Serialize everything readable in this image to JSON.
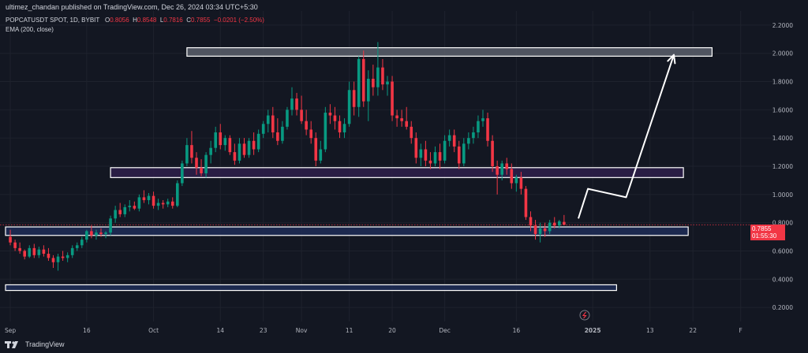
{
  "header": {
    "publisher_text": "ultimez_chandan published on TradingView.com, Dec 26, 2024 03:34 UTC+5:30"
  },
  "legend": {
    "symbol": "POPCATUSDT SPOT, 1D, BYBIT",
    "open_label": "O",
    "open": "0.8056",
    "high_label": "H",
    "high": "0.8548",
    "low_label": "L",
    "low": "0.7816",
    "close_label": "C",
    "close": "0.7855",
    "change": "−0.0201 (−2.50%)",
    "indicator": "EMA (200, close)"
  },
  "price_tag": {
    "price": "0.7855",
    "countdown": "01:55:30"
  },
  "footer": {
    "brand": "TradingView"
  },
  "colors": {
    "background": "#131722",
    "up": "#089981",
    "down": "#f23645",
    "zone_fill": "#1e2d57",
    "zone_border": "#ffffff",
    "mid_zone_fill": "#2e1f4a",
    "top_zone_fill": "#5a5f6b",
    "projection": "#ffffff"
  },
  "chart_data": {
    "type": "candlestick",
    "y_axis": {
      "ticks": [
        "2.2000",
        "2.0000",
        "1.8000",
        "1.6000",
        "1.4000",
        "1.2000",
        "1.0000",
        "0.8000",
        "0.6000",
        "0.4000",
        "0.2000"
      ],
      "tick_values": [
        2.2,
        2.0,
        1.8,
        1.6,
        1.4,
        1.2,
        1.0,
        0.8,
        0.6,
        0.4,
        0.2
      ],
      "range": [
        0.1,
        2.3
      ],
      "position": "right"
    },
    "x_axis": {
      "ticks": [
        "Sep",
        "16",
        "Oct",
        "14",
        "23",
        "Nov",
        "11",
        "20",
        "Dec",
        "16",
        "2025",
        "13",
        "22",
        "F"
      ],
      "tick_days": [
        0,
        16,
        30,
        44,
        53,
        61,
        71,
        80,
        91,
        106,
        122,
        134,
        143,
        153
      ],
      "day_range": [
        -1,
        159
      ]
    },
    "candles": [
      {
        "o": 0.7,
        "h": 0.75,
        "l": 0.64,
        "c": 0.66
      },
      {
        "o": 0.66,
        "h": 0.68,
        "l": 0.6,
        "c": 0.62
      },
      {
        "o": 0.62,
        "h": 0.66,
        "l": 0.58,
        "c": 0.6
      },
      {
        "o": 0.6,
        "h": 0.61,
        "l": 0.54,
        "c": 0.56
      },
      {
        "o": 0.56,
        "h": 0.64,
        "l": 0.55,
        "c": 0.62
      },
      {
        "o": 0.62,
        "h": 0.65,
        "l": 0.55,
        "c": 0.57
      },
      {
        "o": 0.57,
        "h": 0.63,
        "l": 0.55,
        "c": 0.61
      },
      {
        "o": 0.61,
        "h": 0.64,
        "l": 0.56,
        "c": 0.58
      },
      {
        "o": 0.58,
        "h": 0.62,
        "l": 0.53,
        "c": 0.55
      },
      {
        "o": 0.55,
        "h": 0.57,
        "l": 0.48,
        "c": 0.52
      },
      {
        "o": 0.52,
        "h": 0.58,
        "l": 0.46,
        "c": 0.56
      },
      {
        "o": 0.56,
        "h": 0.6,
        "l": 0.53,
        "c": 0.55
      },
      {
        "o": 0.55,
        "h": 0.59,
        "l": 0.52,
        "c": 0.57
      },
      {
        "o": 0.57,
        "h": 0.64,
        "l": 0.55,
        "c": 0.62
      },
      {
        "o": 0.62,
        "h": 0.66,
        "l": 0.6,
        "c": 0.64
      },
      {
        "o": 0.64,
        "h": 0.7,
        "l": 0.62,
        "c": 0.68
      },
      {
        "o": 0.68,
        "h": 0.75,
        "l": 0.66,
        "c": 0.74
      },
      {
        "o": 0.74,
        "h": 0.78,
        "l": 0.69,
        "c": 0.71
      },
      {
        "o": 0.71,
        "h": 0.75,
        "l": 0.68,
        "c": 0.73
      },
      {
        "o": 0.73,
        "h": 0.76,
        "l": 0.7,
        "c": 0.72
      },
      {
        "o": 0.72,
        "h": 0.74,
        "l": 0.69,
        "c": 0.73
      },
      {
        "o": 0.73,
        "h": 0.85,
        "l": 0.71,
        "c": 0.83
      },
      {
        "o": 0.83,
        "h": 0.92,
        "l": 0.8,
        "c": 0.89
      },
      {
        "o": 0.89,
        "h": 0.94,
        "l": 0.84,
        "c": 0.86
      },
      {
        "o": 0.86,
        "h": 0.93,
        "l": 0.84,
        "c": 0.91
      },
      {
        "o": 0.91,
        "h": 0.96,
        "l": 0.88,
        "c": 0.92
      },
      {
        "o": 0.92,
        "h": 0.95,
        "l": 0.89,
        "c": 0.9
      },
      {
        "o": 0.9,
        "h": 1.0,
        "l": 0.88,
        "c": 0.98
      },
      {
        "o": 0.98,
        "h": 1.03,
        "l": 0.94,
        "c": 0.96
      },
      {
        "o": 0.96,
        "h": 1.01,
        "l": 0.93,
        "c": 0.99
      },
      {
        "o": 0.99,
        "h": 1.02,
        "l": 0.9,
        "c": 0.92
      },
      {
        "o": 0.92,
        "h": 0.97,
        "l": 0.89,
        "c": 0.94
      },
      {
        "o": 0.94,
        "h": 0.96,
        "l": 0.9,
        "c": 0.93
      },
      {
        "o": 0.93,
        "h": 0.97,
        "l": 0.91,
        "c": 0.95
      },
      {
        "o": 0.95,
        "h": 0.98,
        "l": 0.9,
        "c": 0.92
      },
      {
        "o": 0.92,
        "h": 1.1,
        "l": 0.91,
        "c": 1.08
      },
      {
        "o": 1.08,
        "h": 1.24,
        "l": 1.06,
        "c": 1.22
      },
      {
        "o": 1.22,
        "h": 1.4,
        "l": 1.2,
        "c": 1.35
      },
      {
        "o": 1.35,
        "h": 1.45,
        "l": 1.22,
        "c": 1.26
      },
      {
        "o": 1.26,
        "h": 1.3,
        "l": 1.14,
        "c": 1.19
      },
      {
        "o": 1.19,
        "h": 1.25,
        "l": 1.13,
        "c": 1.15
      },
      {
        "o": 1.15,
        "h": 1.3,
        "l": 1.12,
        "c": 1.28
      },
      {
        "o": 1.28,
        "h": 1.38,
        "l": 1.22,
        "c": 1.33
      },
      {
        "o": 1.33,
        "h": 1.48,
        "l": 1.3,
        "c": 1.44
      },
      {
        "o": 1.44,
        "h": 1.5,
        "l": 1.32,
        "c": 1.35
      },
      {
        "o": 1.35,
        "h": 1.42,
        "l": 1.31,
        "c": 1.4
      },
      {
        "o": 1.4,
        "h": 1.42,
        "l": 1.28,
        "c": 1.3
      },
      {
        "o": 1.3,
        "h": 1.36,
        "l": 1.21,
        "c": 1.24
      },
      {
        "o": 1.24,
        "h": 1.4,
        "l": 1.22,
        "c": 1.36
      },
      {
        "o": 1.36,
        "h": 1.4,
        "l": 1.26,
        "c": 1.28
      },
      {
        "o": 1.28,
        "h": 1.4,
        "l": 1.26,
        "c": 1.38
      },
      {
        "o": 1.38,
        "h": 1.44,
        "l": 1.28,
        "c": 1.32
      },
      {
        "o": 1.32,
        "h": 1.46,
        "l": 1.3,
        "c": 1.43
      },
      {
        "o": 1.43,
        "h": 1.52,
        "l": 1.4,
        "c": 1.5
      },
      {
        "o": 1.5,
        "h": 1.6,
        "l": 1.44,
        "c": 1.56
      },
      {
        "o": 1.56,
        "h": 1.62,
        "l": 1.4,
        "c": 1.44
      },
      {
        "o": 1.44,
        "h": 1.54,
        "l": 1.35,
        "c": 1.38
      },
      {
        "o": 1.38,
        "h": 1.52,
        "l": 1.36,
        "c": 1.48
      },
      {
        "o": 1.48,
        "h": 1.62,
        "l": 1.46,
        "c": 1.6
      },
      {
        "o": 1.6,
        "h": 1.76,
        "l": 1.56,
        "c": 1.68
      },
      {
        "o": 1.68,
        "h": 1.72,
        "l": 1.56,
        "c": 1.6
      },
      {
        "o": 1.6,
        "h": 1.7,
        "l": 1.5,
        "c": 1.52
      },
      {
        "o": 1.52,
        "h": 1.6,
        "l": 1.42,
        "c": 1.46
      },
      {
        "o": 1.46,
        "h": 1.52,
        "l": 1.36,
        "c": 1.4
      },
      {
        "o": 1.4,
        "h": 1.44,
        "l": 1.2,
        "c": 1.24
      },
      {
        "o": 1.24,
        "h": 1.38,
        "l": 1.22,
        "c": 1.32
      },
      {
        "o": 1.32,
        "h": 1.62,
        "l": 1.3,
        "c": 1.58
      },
      {
        "o": 1.58,
        "h": 1.64,
        "l": 1.5,
        "c": 1.56
      },
      {
        "o": 1.56,
        "h": 1.62,
        "l": 1.46,
        "c": 1.52
      },
      {
        "o": 1.52,
        "h": 1.56,
        "l": 1.4,
        "c": 1.44
      },
      {
        "o": 1.44,
        "h": 1.54,
        "l": 1.4,
        "c": 1.5
      },
      {
        "o": 1.5,
        "h": 1.8,
        "l": 1.48,
        "c": 1.74
      },
      {
        "o": 1.74,
        "h": 1.8,
        "l": 1.56,
        "c": 1.62
      },
      {
        "o": 1.62,
        "h": 1.98,
        "l": 1.55,
        "c": 1.96
      },
      {
        "o": 1.96,
        "h": 2.02,
        "l": 1.62,
        "c": 1.66
      },
      {
        "o": 1.66,
        "h": 1.88,
        "l": 1.52,
        "c": 1.82
      },
      {
        "o": 1.82,
        "h": 1.92,
        "l": 1.7,
        "c": 1.76
      },
      {
        "o": 1.76,
        "h": 2.08,
        "l": 1.7,
        "c": 1.9
      },
      {
        "o": 1.9,
        "h": 1.96,
        "l": 1.74,
        "c": 1.78
      },
      {
        "o": 1.78,
        "h": 1.84,
        "l": 1.7,
        "c": 1.8
      },
      {
        "o": 1.8,
        "h": 1.84,
        "l": 1.52,
        "c": 1.56
      },
      {
        "o": 1.56,
        "h": 1.6,
        "l": 1.48,
        "c": 1.54
      },
      {
        "o": 1.54,
        "h": 1.6,
        "l": 1.48,
        "c": 1.52
      },
      {
        "o": 1.52,
        "h": 1.62,
        "l": 1.46,
        "c": 1.48
      },
      {
        "o": 1.48,
        "h": 1.52,
        "l": 1.36,
        "c": 1.4
      },
      {
        "o": 1.4,
        "h": 1.44,
        "l": 1.22,
        "c": 1.26
      },
      {
        "o": 1.26,
        "h": 1.36,
        "l": 1.2,
        "c": 1.32
      },
      {
        "o": 1.32,
        "h": 1.38,
        "l": 1.2,
        "c": 1.24
      },
      {
        "o": 1.24,
        "h": 1.3,
        "l": 1.18,
        "c": 1.22
      },
      {
        "o": 1.22,
        "h": 1.34,
        "l": 1.2,
        "c": 1.3
      },
      {
        "o": 1.3,
        "h": 1.36,
        "l": 1.18,
        "c": 1.24
      },
      {
        "o": 1.24,
        "h": 1.42,
        "l": 1.22,
        "c": 1.38
      },
      {
        "o": 1.38,
        "h": 1.46,
        "l": 1.34,
        "c": 1.42
      },
      {
        "o": 1.42,
        "h": 1.46,
        "l": 1.3,
        "c": 1.34
      },
      {
        "o": 1.34,
        "h": 1.38,
        "l": 1.18,
        "c": 1.22
      },
      {
        "o": 1.22,
        "h": 1.4,
        "l": 1.2,
        "c": 1.36
      },
      {
        "o": 1.36,
        "h": 1.44,
        "l": 1.32,
        "c": 1.4
      },
      {
        "o": 1.4,
        "h": 1.48,
        "l": 1.36,
        "c": 1.44
      },
      {
        "o": 1.44,
        "h": 1.56,
        "l": 1.4,
        "c": 1.52
      },
      {
        "o": 1.52,
        "h": 1.6,
        "l": 1.48,
        "c": 1.54
      },
      {
        "o": 1.54,
        "h": 1.58,
        "l": 1.34,
        "c": 1.38
      },
      {
        "o": 1.38,
        "h": 1.42,
        "l": 1.16,
        "c": 1.2
      },
      {
        "o": 1.2,
        "h": 1.24,
        "l": 1.0,
        "c": 1.14
      },
      {
        "o": 1.14,
        "h": 1.24,
        "l": 1.1,
        "c": 1.22
      },
      {
        "o": 1.22,
        "h": 1.26,
        "l": 1.14,
        "c": 1.18
      },
      {
        "o": 1.18,
        "h": 1.22,
        "l": 1.04,
        "c": 1.08
      },
      {
        "o": 1.08,
        "h": 1.14,
        "l": 1.02,
        "c": 1.12
      },
      {
        "o": 1.12,
        "h": 1.16,
        "l": 1.0,
        "c": 1.04
      },
      {
        "o": 1.04,
        "h": 1.06,
        "l": 0.82,
        "c": 0.84
      },
      {
        "o": 0.84,
        "h": 0.88,
        "l": 0.74,
        "c": 0.78
      },
      {
        "o": 0.78,
        "h": 0.82,
        "l": 0.68,
        "c": 0.72
      },
      {
        "o": 0.72,
        "h": 0.8,
        "l": 0.66,
        "c": 0.76
      },
      {
        "o": 0.76,
        "h": 0.8,
        "l": 0.7,
        "c": 0.74
      },
      {
        "o": 0.74,
        "h": 0.82,
        "l": 0.72,
        "c": 0.8
      },
      {
        "o": 0.8,
        "h": 0.84,
        "l": 0.76,
        "c": 0.78
      },
      {
        "o": 0.78,
        "h": 0.82,
        "l": 0.76,
        "c": 0.81
      },
      {
        "o": 0.8056,
        "h": 0.8548,
        "l": 0.7816,
        "c": 0.7855
      }
    ],
    "zones": [
      {
        "name": "top-target-zone",
        "top": 2.04,
        "bottom": 1.98,
        "day_start": 37,
        "day_end": 147
      },
      {
        "name": "mid-resistance-zone",
        "top": 1.19,
        "bottom": 1.12,
        "day_start": 21,
        "day_end": 141
      },
      {
        "name": "support-zone",
        "top": 0.77,
        "bottom": 0.71,
        "day_start": -1,
        "day_end": 142
      },
      {
        "name": "lower-support-zone",
        "top": 0.36,
        "bottom": 0.32,
        "day_start": -1,
        "day_end": 127
      }
    ],
    "projection_path": [
      {
        "day": 119,
        "price": 0.83
      },
      {
        "day": 121,
        "price": 1.04
      },
      {
        "day": 129,
        "price": 0.98
      },
      {
        "day": 139,
        "price": 1.99
      }
    ],
    "current_price_line": 0.7855,
    "grid": true,
    "legend_position": "top-left"
  }
}
